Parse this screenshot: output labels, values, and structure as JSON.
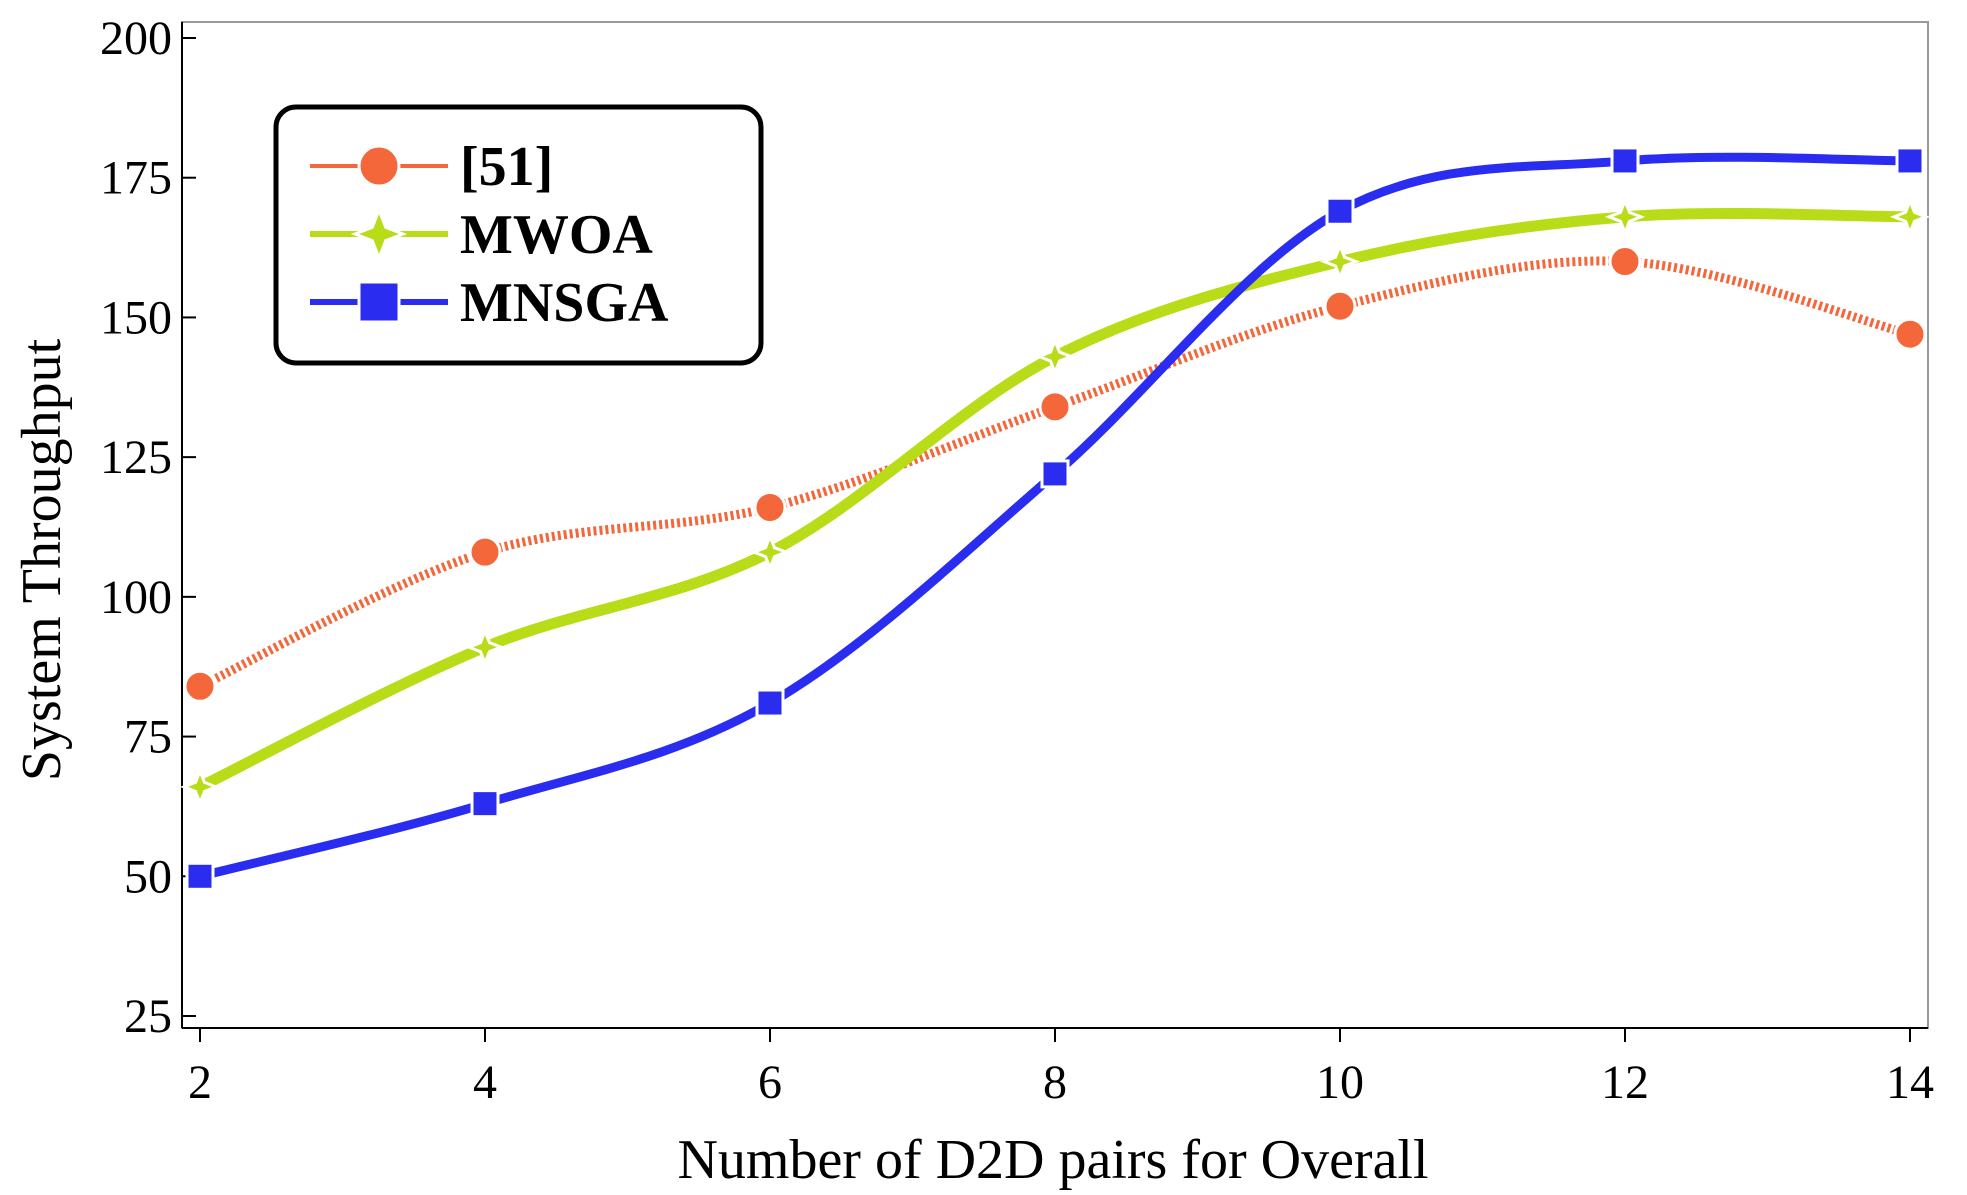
{
  "chart_data": {
    "type": "line",
    "title": "",
    "xlabel": "Number of D2D pairs for Overall",
    "ylabel": "System Throughput",
    "x": [
      2,
      4,
      6,
      8,
      10,
      12,
      14
    ],
    "xlim": [
      2,
      14
    ],
    "ylim": [
      25,
      200
    ],
    "xticks": [
      2,
      4,
      6,
      8,
      10,
      12,
      14
    ],
    "yticks": [
      25,
      50,
      75,
      100,
      125,
      150,
      175,
      200
    ],
    "grid": false,
    "legend_position": "top-left",
    "series": [
      {
        "name": "[51]",
        "values": [
          84,
          108,
          116,
          134,
          152,
          160,
          147
        ],
        "color": "#f4673a",
        "line_style": "dotted",
        "marker": "circle"
      },
      {
        "name": "MWOA",
        "values": [
          66,
          91,
          108,
          143,
          160,
          168,
          168
        ],
        "color": "#b8dc17",
        "line_style": "solid",
        "marker": "star"
      },
      {
        "name": "MNSGA",
        "values": [
          50,
          63,
          81,
          122,
          169,
          178,
          178
        ],
        "color": "#2a2cf0",
        "line_style": "solid",
        "marker": "square"
      }
    ]
  }
}
